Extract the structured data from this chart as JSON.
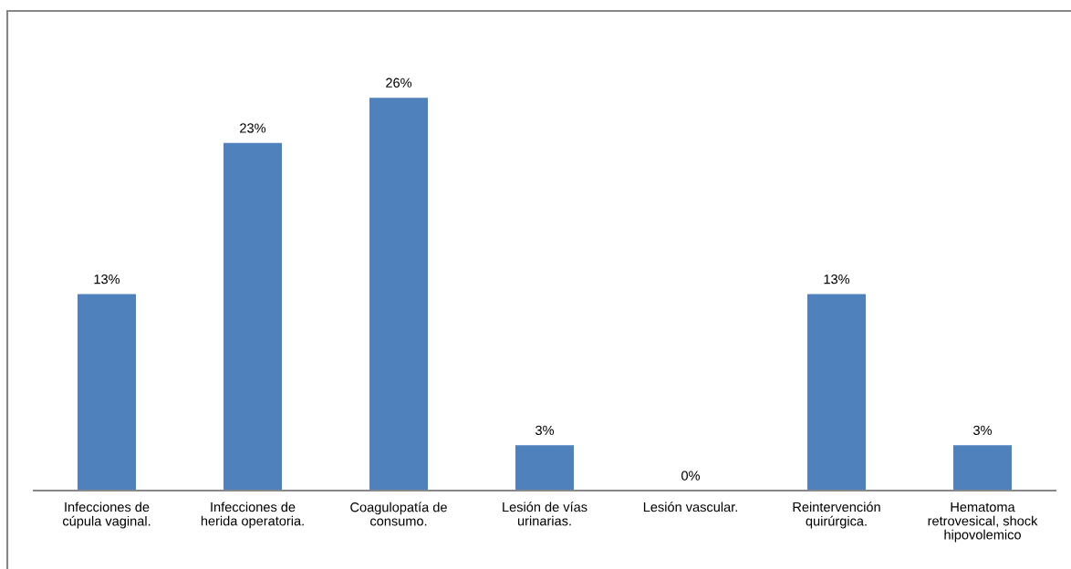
{
  "chart_data": {
    "type": "bar",
    "categories": [
      "Infecciones de\ncúpula vaginal.",
      "Infecciones de\nherida operatoria.",
      "Coagulopatía de\nconsumo.",
      "Lesión de vías\nurinarias.",
      "Lesión vascular.",
      "Reintervención\nquirúrgica.",
      "Hematoma\nretrovesical, shock\nhipovolemico"
    ],
    "values": [
      13,
      23,
      26,
      3,
      0,
      13,
      3
    ],
    "value_labels": [
      "13%",
      "23%",
      "26%",
      "3%",
      "0%",
      "13%",
      "3%"
    ],
    "color": "#4f81bd",
    "tick_labels": "x"
  }
}
